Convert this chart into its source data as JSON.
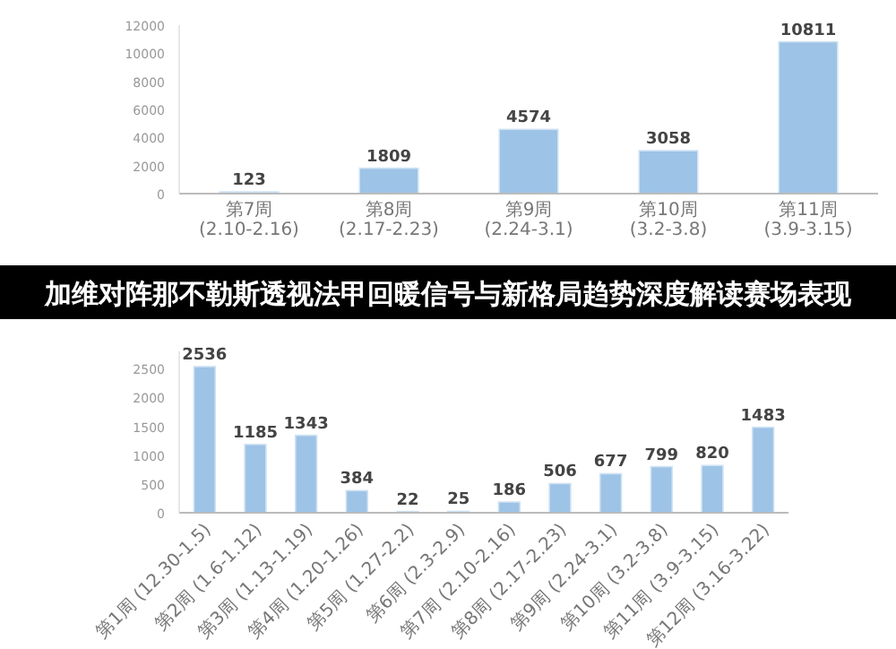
{
  "chart_data": [
    {
      "type": "bar",
      "categories": [
        "第7周 (2.10-2.16)",
        "第8周 (2.17-2.23)",
        "第9周 (2.24-3.1)",
        "第10周 (3.2-3.8)",
        "第11周 (3.9-3.15)"
      ],
      "values": [
        123,
        1809,
        4574,
        3058,
        10811
      ],
      "color": "#9dc3e6",
      "ylim": [
        0,
        12000
      ],
      "yticks": [
        0,
        2000,
        4000,
        6000,
        8000,
        10000,
        12000
      ],
      "data_labels": true
    },
    {
      "type": "bar",
      "title": "加维对阵那不勒斯透视法甲回暖信号与新格局趋势深度解读赛场表现",
      "categories": [
        "第1周 (12.30-1.5)",
        "第2周 (1.6-1.12)",
        "第3周 (1.13-1.19)",
        "第4周 (1.20-1.26)",
        "第5周 (1.27-2.2)",
        "第6周 (2.3-2.9)",
        "第7周 (2.10-2.16)",
        "第8周 (2.17-2.23)",
        "第9周 (2.24-3.1)",
        "第10周 (3.2-3.8)",
        "第11周 (3.9-3.15)",
        "第12周 (3.16-3.22)"
      ],
      "values": [
        2536,
        1185,
        1343,
        384,
        22,
        25,
        186,
        506,
        677,
        799,
        820,
        1483
      ],
      "color": "#9dc3e6",
      "ylim": [
        0,
        2800
      ],
      "yticks": [
        0,
        500,
        1000,
        1500,
        2000,
        2500
      ],
      "data_labels": true
    }
  ]
}
